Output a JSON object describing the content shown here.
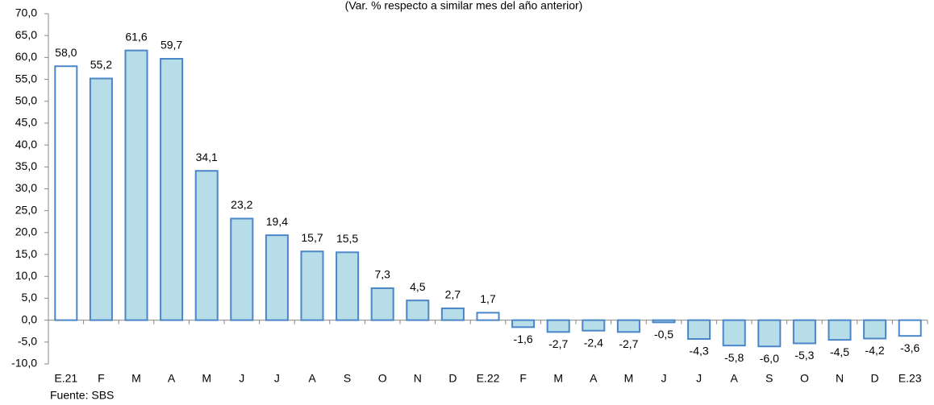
{
  "chart_data": {
    "type": "bar",
    "title": "(Var. % respecto a similar mes del año anterior)",
    "source": "Fuente: SBS",
    "categories": [
      "E.21",
      "F",
      "M",
      "A",
      "M",
      "J",
      "J",
      "A",
      "S",
      "O",
      "N",
      "D",
      "E.22",
      "F",
      "M",
      "A",
      "M",
      "J",
      "J",
      "A",
      "S",
      "O",
      "N",
      "D",
      "E.23"
    ],
    "values": [
      58.0,
      55.2,
      61.6,
      59.7,
      34.1,
      23.2,
      19.4,
      15.7,
      15.5,
      7.3,
      4.5,
      2.7,
      1.7,
      -1.6,
      -2.7,
      -2.4,
      -2.7,
      -0.5,
      -4.3,
      -5.8,
      -6.0,
      -5.3,
      -4.5,
      -4.2,
      -3.6
    ],
    "value_labels": [
      "58,0",
      "55,2",
      "61,6",
      "59,7",
      "34,1",
      "23,2",
      "19,4",
      "15,7",
      "15,5",
      "7,3",
      "4,5",
      "2,7",
      "1,7",
      "-1,6",
      "-2,7",
      "-2,4",
      "-2,7",
      "-0,5",
      "-4,3",
      "-5,8",
      "-6,0",
      "-5,3",
      "-4,5",
      "-4,2",
      "-3,6"
    ],
    "colors": [
      "#ffffff",
      "#b7dde8",
      "#b7dde8",
      "#b7dde8",
      "#b7dde8",
      "#b7dde8",
      "#b7dde8",
      "#b7dde8",
      "#b7dde8",
      "#b7dde8",
      "#b7dde8",
      "#b7dde8",
      "#ffffff",
      "#b7dde8",
      "#b7dde8",
      "#b7dde8",
      "#b7dde8",
      "#b7dde8",
      "#b7dde8",
      "#b7dde8",
      "#b7dde8",
      "#b7dde8",
      "#b7dde8",
      "#b7dde8",
      "#ffffff"
    ],
    "edgecolor": "#4a86c8",
    "ylim": [
      -10,
      70
    ],
    "yticks": [
      {
        "value": -10,
        "label": "-10,0"
      },
      {
        "value": -5,
        "label": "-5,0"
      },
      {
        "value": 0,
        "label": "0,0"
      },
      {
        "value": 5,
        "label": "5,0"
      },
      {
        "value": 10,
        "label": "10,0"
      },
      {
        "value": 15,
        "label": "15,0"
      },
      {
        "value": 20,
        "label": "20,0"
      },
      {
        "value": 25,
        "label": "25,0"
      },
      {
        "value": 30,
        "label": "30,0"
      },
      {
        "value": 35,
        "label": "35,0"
      },
      {
        "value": 40,
        "label": "40,0"
      },
      {
        "value": 45,
        "label": "45,0"
      },
      {
        "value": 50,
        "label": "50,0"
      },
      {
        "value": 55,
        "label": "55,0"
      },
      {
        "value": 60,
        "label": "60,0"
      },
      {
        "value": 65,
        "label": "65,0"
      },
      {
        "value": 70,
        "label": "70,0"
      }
    ],
    "grid": false
  }
}
